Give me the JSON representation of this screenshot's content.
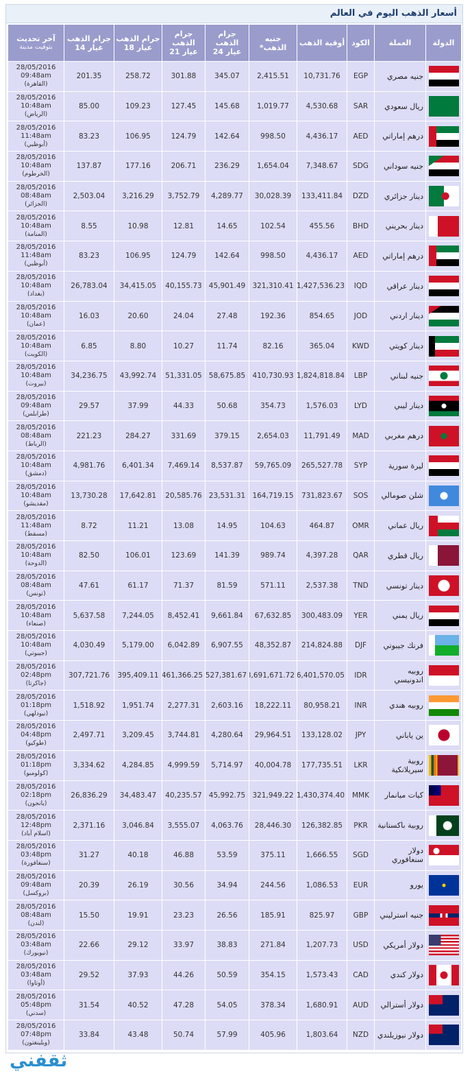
{
  "title": "أسعار الذهب اليوم في العالم",
  "table": {
    "headers": [
      "الدولة",
      "العملة",
      "الكود",
      "أوقية الذهب",
      "جنيه الذهب*",
      "جرام الذهب عيار 24",
      "جرام الذهب عيار 21",
      "جرام الذهب عيار 18",
      "جرام الذهب عيار 14",
      "آخر تحديث",
      "بتوقيت مدينة"
    ],
    "rows": [
      {
        "currency": "جنيه مصري",
        "code": "EGP",
        "ounce": "10,731.76",
        "pound": "2,415.51",
        "k24": "345.07",
        "k21": "301.88",
        "k18": "258.72",
        "k14": "201.35",
        "date": "28/05/2016",
        "time": "09:48am",
        "city": "(القاهرة)"
      },
      {
        "currency": "ريال سعودي",
        "code": "SAR",
        "ounce": "4,530.68",
        "pound": "1,019.77",
        "k24": "145.68",
        "k21": "127.45",
        "k18": "109.23",
        "k14": "85.00",
        "date": "28/05/2016",
        "time": "10:48am",
        "city": "(الرياض)"
      },
      {
        "currency": "درهم إماراتي",
        "code": "AED",
        "ounce": "4,436.17",
        "pound": "998.50",
        "k24": "142.64",
        "k21": "124.79",
        "k18": "106.95",
        "k14": "83.23",
        "date": "28/05/2016",
        "time": "11:48am",
        "city": "(أبوظبي)"
      },
      {
        "currency": "جنيه سوداني",
        "code": "SDG",
        "ounce": "7,348.67",
        "pound": "1,654.04",
        "k24": "236.29",
        "k21": "206.71",
        "k18": "177.16",
        "k14": "137.87",
        "date": "28/05/2016",
        "time": "10:48am",
        "city": "(الخرطوم)"
      },
      {
        "currency": "دينار جزائري",
        "code": "DZD",
        "ounce": "133,411.84",
        "pound": "30,028.39",
        "k24": "4,289.77",
        "k21": "3,752.79",
        "k18": "3,216.29",
        "k14": "2,503.04",
        "date": "28/05/2016",
        "time": "08:48am",
        "city": "(الجزائر)"
      },
      {
        "currency": "دينار بحريني",
        "code": "BHD",
        "ounce": "455.56",
        "pound": "102.54",
        "k24": "14.65",
        "k21": "12.81",
        "k18": "10.98",
        "k14": "8.55",
        "date": "28/05/2016",
        "time": "10:48am",
        "city": "(المنامة)"
      },
      {
        "currency": "درهم إماراتي",
        "code": "AED",
        "ounce": "4,436.17",
        "pound": "998.50",
        "k24": "142.64",
        "k21": "124.79",
        "k18": "106.95",
        "k14": "83.23",
        "date": "28/05/2016",
        "time": "11:48am",
        "city": "(أبوظبي)"
      },
      {
        "currency": "دينار عراقي",
        "code": "IQD",
        "ounce": "1,427,536.23",
        "pound": "321,310.41",
        "k24": "45,901.49",
        "k21": "40,155.73",
        "k18": "34,415.05",
        "k14": "26,783.04",
        "date": "28/05/2016",
        "time": "10:48am",
        "city": "(بغداد)"
      },
      {
        "currency": "دينار اردني",
        "code": "JOD",
        "ounce": "854.65",
        "pound": "192.36",
        "k24": "27.48",
        "k21": "24.04",
        "k18": "20.60",
        "k14": "16.03",
        "date": "28/05/2016",
        "time": "10:48am",
        "city": "(عمان)"
      },
      {
        "currency": "دينار كويتي",
        "code": "KWD",
        "ounce": "365.04",
        "pound": "82.16",
        "k24": "11.74",
        "k21": "10.27",
        "k18": "8.80",
        "k14": "6.85",
        "date": "28/05/2016",
        "time": "10:48am",
        "city": "(الكويت)"
      },
      {
        "currency": "جنيه لبناني",
        "code": "LBP",
        "ounce": "1,824,818.84",
        "pound": "410,730.93",
        "k24": "58,675.85",
        "k21": "51,331.05",
        "k18": "43,992.74",
        "k14": "34,236.75",
        "date": "28/05/2016",
        "time": "10:48am",
        "city": "(بيروت)"
      },
      {
        "currency": "دينار ليبي",
        "code": "LYD",
        "ounce": "1,576.03",
        "pound": "354.73",
        "k24": "50.68",
        "k21": "44.33",
        "k18": "37.99",
        "k14": "29.57",
        "date": "28/05/2016",
        "time": "09:48am",
        "city": "(طرابلس)"
      },
      {
        "currency": "درهم مغربي",
        "code": "MAD",
        "ounce": "11,791.49",
        "pound": "2,654.03",
        "k24": "379.15",
        "k21": "331.69",
        "k18": "284.27",
        "k14": "221.23",
        "date": "28/05/2016",
        "time": "08:48am",
        "city": "(الرباط)"
      },
      {
        "currency": "ليرة سورية",
        "code": "SYP",
        "ounce": "265,527.78",
        "pound": "59,765.09",
        "k24": "8,537.87",
        "k21": "7,469.14",
        "k18": "6,401.34",
        "k14": "4,981.76",
        "date": "28/05/2016",
        "time": "10:48am",
        "city": "(دمشق)"
      },
      {
        "currency": "شلن صومالي",
        "code": "SOS",
        "ounce": "731,823.67",
        "pound": "164,719.15",
        "k24": "23,531.31",
        "k21": "20,585.76",
        "k18": "17,642.81",
        "k14": "13,730.28",
        "date": "28/05/2016",
        "time": "10:48am",
        "city": "(مقديشو)"
      },
      {
        "currency": "ريال عماني",
        "code": "OMR",
        "ounce": "464.87",
        "pound": "104.63",
        "k24": "14.95",
        "k21": "13.08",
        "k18": "11.21",
        "k14": "8.72",
        "date": "28/05/2016",
        "time": "11:48am",
        "city": "(مسقط)"
      },
      {
        "currency": "ريال قطري",
        "code": "QAR",
        "ounce": "4,397.28",
        "pound": "989.74",
        "k24": "141.39",
        "k21": "123.69",
        "k18": "106.01",
        "k14": "82.50",
        "date": "28/05/2016",
        "time": "10:48am",
        "city": "(الدوحة)"
      },
      {
        "currency": "دينار تونسي",
        "code": "TND",
        "ounce": "2,537.38",
        "pound": "571.11",
        "k24": "81.59",
        "k21": "71.37",
        "k18": "61.17",
        "k14": "47.61",
        "date": "28/05/2016",
        "time": "08:48am",
        "city": "(تونس)"
      },
      {
        "currency": "ريال يمني",
        "code": "YER",
        "ounce": "300,483.09",
        "pound": "67,632.85",
        "k24": "9,661.84",
        "k21": "8,452.41",
        "k18": "7,244.05",
        "k14": "5,637.58",
        "date": "28/05/2016",
        "time": "10:48am",
        "city": "(صنعاء)"
      },
      {
        "currency": "فرنك جيبوتي",
        "code": "DJF",
        "ounce": "214,824.88",
        "pound": "48,352.87",
        "k24": "6,907.55",
        "k21": "6,042.89",
        "k18": "5,179.00",
        "k14": "4,030.49",
        "date": "28/05/2016",
        "time": "10:48am",
        "city": "(جيبوتي)"
      },
      {
        "currency": "روبيه اندونيسي",
        "code": "IDR",
        "ounce": "16,401,570.05",
        "pound": "3,691,671.72",
        "k24": "527,381.67",
        "k21": "461,366.25",
        "k18": "395,409.11",
        "k14": "307,721.76",
        "date": "28/05/2016",
        "time": "02:48pm",
        "city": "(جاكرتا)"
      },
      {
        "currency": "روبيه هندي",
        "code": "INR",
        "ounce": "80,958.21",
        "pound": "18,222.11",
        "k24": "2,603.16",
        "k21": "2,277.31",
        "k18": "1,951.74",
        "k14": "1,518.92",
        "date": "28/05/2016",
        "time": "01:18pm",
        "city": "(نيودلهي)"
      },
      {
        "currency": "ين ياباني",
        "code": "JPY",
        "ounce": "133,128.02",
        "pound": "29,964.51",
        "k24": "4,280.64",
        "k21": "3,744.81",
        "k18": "3,209.45",
        "k14": "2,497.71",
        "date": "28/05/2016",
        "time": "04:48pm",
        "city": "(طوكيو)"
      },
      {
        "currency": "روبية سيريلانكية",
        "code": "LKR",
        "ounce": "177,735.51",
        "pound": "40,004.78",
        "k24": "5,714.97",
        "k21": "4,999.59",
        "k18": "4,284.85",
        "k14": "3,334.62",
        "date": "28/05/2016",
        "time": "01:18pm",
        "city": "(كولومبو)"
      },
      {
        "currency": "كيات ميانمار",
        "code": "MMK",
        "ounce": "1,430,374.40",
        "pound": "321,949.22",
        "k24": "45,992.75",
        "k21": "40,235.57",
        "k18": "34,483.47",
        "k14": "26,836.29",
        "date": "28/05/2016",
        "time": "02:18pm",
        "city": "(يانجون)"
      },
      {
        "currency": "روبية باكستانية",
        "code": "PKR",
        "ounce": "126,382.85",
        "pound": "28,446.30",
        "k24": "4,063.76",
        "k21": "3,555.07",
        "k18": "3,046.84",
        "k14": "2,371.16",
        "date": "28/05/2016",
        "time": "12:48pm",
        "city": "(اسلام آباد)"
      },
      {
        "currency": "دولار سنغافوري",
        "code": "SGD",
        "ounce": "1,666.55",
        "pound": "375.11",
        "k24": "53.59",
        "k21": "46.88",
        "k18": "40.18",
        "k14": "31.27",
        "date": "28/05/2016",
        "time": "03:48pm",
        "city": "(سنغافورة)"
      },
      {
        "currency": "يورو",
        "code": "EUR",
        "ounce": "1,086.53",
        "pound": "244.56",
        "k24": "34.94",
        "k21": "30.56",
        "k18": "26.19",
        "k14": "20.39",
        "date": "28/05/2016",
        "time": "09:48am",
        "city": "(بروكسل)"
      },
      {
        "currency": "جنيه استرليني",
        "code": "GBP",
        "ounce": "825.97",
        "pound": "185.91",
        "k24": "26.56",
        "k21": "23.23",
        "k18": "19.91",
        "k14": "15.50",
        "date": "28/05/2016",
        "time": "08:48am",
        "city": "(لندن)"
      },
      {
        "currency": "دولار أمريكي",
        "code": "USD",
        "ounce": "1,207.73",
        "pound": "271.84",
        "k24": "38.83",
        "k21": "33.97",
        "k18": "29.12",
        "k14": "22.66",
        "date": "28/05/2016",
        "time": "03:48am",
        "city": "(نيويورك)"
      },
      {
        "currency": "دولار كندي",
        "code": "CAD",
        "ounce": "1,573.43",
        "pound": "354.15",
        "k24": "50.59",
        "k21": "44.26",
        "k18": "37.93",
        "k14": "29.52",
        "date": "28/05/2016",
        "time": "03:48am",
        "city": "(أوتاوا)"
      },
      {
        "currency": "دولار أسترالي",
        "code": "AUD",
        "ounce": "1,680.91",
        "pound": "378.34",
        "k24": "54.05",
        "k21": "47.28",
        "k18": "40.52",
        "k14": "31.54",
        "date": "28/05/2016",
        "time": "05:48pm",
        "city": "(سدني)"
      },
      {
        "currency": "دولار نيوزيلندي",
        "code": "NZD",
        "ounce": "1,803.64",
        "pound": "405.96",
        "k24": "57.99",
        "k21": "50.74",
        "k18": "43.48",
        "k14": "33.84",
        "date": "28/05/2016",
        "time": "07:48pm",
        "city": "(ويلينغتون)"
      }
    ]
  },
  "watermark": "ثقفني"
}
